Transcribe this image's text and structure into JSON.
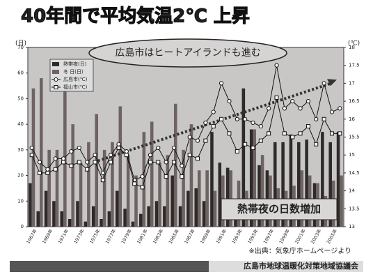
{
  "chart_data": {
    "type": "bar-line",
    "title": "40年間で平均気温2℃ 上昇",
    "y_label": "(日)",
    "y2_label": "(℃)",
    "callout": "広島市はヒートアイランドも進む",
    "highlight": "熱帯夜の日数増加",
    "source": "※出典：気象庁ホームページより",
    "footer": "広島市地球温暖化対策地域協議会",
    "categories": [
      "1967年",
      null,
      "1969年",
      null,
      "1971年",
      null,
      "1973年",
      null,
      "1975年",
      null,
      "1977年",
      null,
      "1979年",
      null,
      "1981年",
      null,
      "1983年",
      null,
      "1985年",
      null,
      "1987年",
      null,
      "1989年",
      null,
      "1991年",
      null,
      "1993年",
      null,
      "1995年",
      null,
      "1997年",
      null,
      "1999年",
      null,
      "2001年",
      null,
      "2003年",
      null,
      "2005年",
      null
    ],
    "series": [
      {
        "name": "熱帯夜(日)",
        "kind": "bar",
        "color": "#2e2a2a",
        "values": [
          17,
          6,
          14,
          10,
          6,
          3,
          10,
          2,
          8,
          3,
          6,
          14,
          7,
          2,
          5,
          8,
          10,
          8,
          20,
          8,
          14,
          15,
          10,
          37,
          25,
          23,
          6,
          54,
          38,
          24,
          22,
          33,
          33,
          36,
          33,
          34,
          17,
          37,
          33,
          37
        ]
      },
      {
        "name": "冬 日(日)",
        "kind": "bar",
        "color": "#6e6262",
        "values": [
          54,
          58,
          30,
          30,
          53,
          40,
          25,
          33,
          44,
          30,
          33,
          47,
          28,
          20,
          37,
          41,
          25,
          28,
          48,
          30,
          40,
          22,
          22,
          14,
          20,
          22,
          18,
          14,
          38,
          28,
          20,
          15,
          14,
          16,
          22,
          20,
          17,
          12,
          18,
          20
        ]
      },
      {
        "name": "広島市(℃)",
        "kind": "line",
        "marker": "circle",
        "axis": "y2",
        "color": "#ffffff",
        "values": [
          15.2,
          14.8,
          14.6,
          14.9,
          14.9,
          15.1,
          15.2,
          14.8,
          15.0,
          14.5,
          15.0,
          15.3,
          15.1,
          14.3,
          14.4,
          15.0,
          15.2,
          14.8,
          15.2,
          14.7,
          15.5,
          15.4,
          15.9,
          16.2,
          17.0,
          16.5,
          16.0,
          16.0,
          15.9,
          15.8,
          16.3,
          17.5,
          16.3,
          16.5,
          16.3,
          16.5,
          16.0,
          17.0,
          16.2,
          16.3
        ]
      },
      {
        "name": "福山市(℃)",
        "kind": "line",
        "marker": "square",
        "axis": "y2",
        "color": "#ffffff",
        "values": [
          15.0,
          14.5,
          14.5,
          14.6,
          14.8,
          14.7,
          14.8,
          14.6,
          14.8,
          14.3,
          14.8,
          15.2,
          15.0,
          14.2,
          14.1,
          14.8,
          14.8,
          14.4,
          14.8,
          14.4,
          15.0,
          14.9,
          15.4,
          15.8,
          16.0,
          15.6,
          15.1,
          15.3,
          15.2,
          15.4,
          15.6,
          16.6,
          15.6,
          15.5,
          15.6,
          15.8,
          15.3,
          16.0,
          15.6,
          15.6
        ]
      }
    ],
    "ylim": [
      0,
      70
    ],
    "yticks": [
      0,
      10,
      20,
      30,
      40,
      50,
      60,
      70
    ],
    "y2lim": [
      13,
      18
    ],
    "y2ticks": [
      13,
      13.5,
      14,
      14.5,
      15,
      15.5,
      16,
      16.5,
      17,
      17.5,
      18
    ],
    "plot_background": "#c9c6c6"
  }
}
